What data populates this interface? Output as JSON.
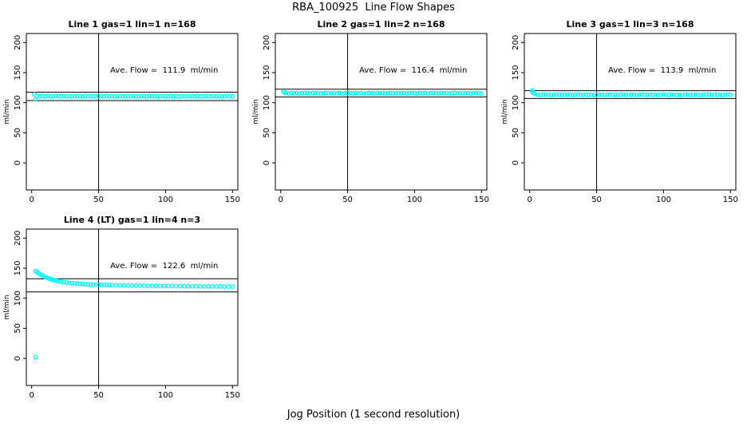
{
  "header": {
    "title": "RBA_100925  Line Flow Shapes"
  },
  "footer": {
    "xlabel": "Jog Position (1 second resolution)"
  },
  "style": {
    "point_color": "#00ffff",
    "axis_color": "#000000",
    "background": "#ffffff"
  },
  "chart_data": [
    {
      "type": "scatter",
      "title": "Line 1 gas=1 lin=1 n=168",
      "annotation": "Ave. Flow =  111.9  ml/min",
      "ave_flow": 111.9,
      "ylabel": "ml/min",
      "xticks": [
        0,
        50,
        100,
        150
      ],
      "yticks": [
        0,
        50,
        100,
        150,
        200
      ],
      "xlim": [
        0,
        150
      ],
      "ylim": [
        0,
        200
      ],
      "vline_x": 50,
      "hlines": [
        117.5,
        103.5
      ],
      "points": [
        [
          2,
          114
        ],
        [
          3,
          105.5
        ],
        [
          4,
          110.8
        ],
        [
          6,
          110.3
        ],
        [
          8,
          111
        ],
        [
          10,
          110.5
        ],
        [
          12,
          110.9
        ],
        [
          14,
          110.2
        ],
        [
          16,
          110.6
        ],
        [
          18,
          111.1
        ],
        [
          20,
          110.8
        ],
        [
          22,
          110.3
        ],
        [
          24,
          111
        ],
        [
          26,
          110.5
        ],
        [
          28,
          110.9
        ],
        [
          30,
          110.2
        ],
        [
          32,
          110.6
        ],
        [
          34,
          111.1
        ],
        [
          36,
          110.8
        ],
        [
          38,
          110.3
        ],
        [
          40,
          111
        ],
        [
          42,
          110.5
        ],
        [
          44,
          110.9
        ],
        [
          46,
          110.2
        ],
        [
          48,
          110.6
        ],
        [
          50,
          111.1
        ],
        [
          52,
          110.8
        ],
        [
          54,
          110.3
        ],
        [
          56,
          111
        ],
        [
          58,
          110.5
        ],
        [
          60,
          110.9
        ],
        [
          62,
          110.2
        ],
        [
          64,
          110.6
        ],
        [
          66,
          111.1
        ],
        [
          68,
          110.8
        ],
        [
          70,
          110.3
        ],
        [
          72,
          111
        ],
        [
          74,
          110.5
        ],
        [
          76,
          110.9
        ],
        [
          78,
          110.2
        ],
        [
          80,
          110.6
        ],
        [
          82,
          111.1
        ],
        [
          84,
          110.8
        ],
        [
          86,
          110.3
        ],
        [
          88,
          111
        ],
        [
          90,
          110.5
        ],
        [
          92,
          110.9
        ],
        [
          94,
          110.2
        ],
        [
          96,
          110.6
        ],
        [
          98,
          111.1
        ],
        [
          100,
          110.8
        ],
        [
          102,
          110.3
        ],
        [
          104,
          111
        ],
        [
          106,
          110.5
        ],
        [
          108,
          110.9
        ],
        [
          110,
          110.2
        ],
        [
          112,
          110.6
        ],
        [
          114,
          111.1
        ],
        [
          116,
          110.8
        ],
        [
          118,
          110.3
        ],
        [
          120,
          111
        ],
        [
          122,
          110.5
        ],
        [
          124,
          110.9
        ],
        [
          126,
          110.2
        ],
        [
          128,
          110.6
        ],
        [
          130,
          111.1
        ],
        [
          132,
          110.8
        ],
        [
          134,
          110.3
        ],
        [
          136,
          111
        ],
        [
          138,
          110.5
        ],
        [
          140,
          110.9
        ],
        [
          142,
          110.2
        ],
        [
          144,
          110.6
        ],
        [
          146,
          111.1
        ],
        [
          148,
          110.8
        ],
        [
          150,
          110.3
        ]
      ]
    },
    {
      "type": "scatter",
      "title": "Line 2 gas=1 lin=2 n=168",
      "annotation": "Ave. Flow =  116.4  ml/min",
      "ave_flow": 116.4,
      "ylabel": "ml/min",
      "xticks": [
        0,
        50,
        100,
        150
      ],
      "yticks": [
        0,
        50,
        100,
        150,
        200
      ],
      "xlim": [
        0,
        150
      ],
      "ylim": [
        0,
        200
      ],
      "vline_x": 50,
      "hlines": [
        122.5,
        109.5
      ],
      "points": [
        [
          2,
          118.5
        ],
        [
          3,
          117
        ],
        [
          4,
          115.9
        ],
        [
          6,
          115.4
        ],
        [
          8,
          116.1
        ],
        [
          10,
          115.6
        ],
        [
          12,
          116
        ],
        [
          14,
          115.3
        ],
        [
          16,
          115.7
        ],
        [
          18,
          116.2
        ],
        [
          20,
          115.9
        ],
        [
          22,
          115.4
        ],
        [
          24,
          116.1
        ],
        [
          26,
          115.6
        ],
        [
          28,
          116
        ],
        [
          30,
          115.3
        ],
        [
          32,
          115.7
        ],
        [
          34,
          116.2
        ],
        [
          36,
          115.9
        ],
        [
          38,
          115.4
        ],
        [
          40,
          116.1
        ],
        [
          42,
          115.6
        ],
        [
          44,
          116
        ],
        [
          46,
          115.3
        ],
        [
          48,
          115.7
        ],
        [
          50,
          116.2
        ],
        [
          52,
          115.9
        ],
        [
          54,
          115.4
        ],
        [
          56,
          116.1
        ],
        [
          58,
          115.6
        ],
        [
          60,
          116
        ],
        [
          62,
          115.3
        ],
        [
          64,
          115.7
        ],
        [
          66,
          116.2
        ],
        [
          68,
          115.9
        ],
        [
          70,
          115.4
        ],
        [
          72,
          116.1
        ],
        [
          74,
          115.6
        ],
        [
          76,
          116
        ],
        [
          78,
          115.3
        ],
        [
          80,
          115.7
        ],
        [
          82,
          116.2
        ],
        [
          84,
          115.9
        ],
        [
          86,
          115.4
        ],
        [
          88,
          116.1
        ],
        [
          90,
          115.6
        ],
        [
          92,
          116
        ],
        [
          94,
          115.3
        ],
        [
          96,
          115.7
        ],
        [
          98,
          116.2
        ],
        [
          100,
          115.9
        ],
        [
          102,
          115.4
        ],
        [
          104,
          116.1
        ],
        [
          106,
          115.6
        ],
        [
          108,
          116
        ],
        [
          110,
          115.3
        ],
        [
          112,
          115.7
        ],
        [
          114,
          116.2
        ],
        [
          116,
          115.9
        ],
        [
          118,
          115.4
        ],
        [
          120,
          116.1
        ],
        [
          122,
          115.6
        ],
        [
          124,
          116
        ],
        [
          126,
          115.3
        ],
        [
          128,
          115.7
        ],
        [
          130,
          116.2
        ],
        [
          132,
          115.9
        ],
        [
          134,
          115.4
        ],
        [
          136,
          116.1
        ],
        [
          138,
          115.6
        ],
        [
          140,
          116
        ],
        [
          142,
          115.3
        ],
        [
          144,
          115.7
        ],
        [
          146,
          116.2
        ],
        [
          148,
          115.9
        ],
        [
          150,
          115.4
        ]
      ]
    },
    {
      "type": "scatter",
      "title": "Line 3 gas=1 lin=3 n=168",
      "annotation": "Ave. Flow =  113.9  ml/min",
      "ave_flow": 113.9,
      "ylabel": "ml/min",
      "xticks": [
        0,
        50,
        100,
        150
      ],
      "yticks": [
        0,
        50,
        100,
        150,
        200
      ],
      "xlim": [
        0,
        150
      ],
      "ylim": [
        0,
        200
      ],
      "vline_x": 50,
      "hlines": [
        120.0,
        107.0
      ],
      "points": [
        [
          2,
          120.5
        ],
        [
          2,
          118
        ],
        [
          3,
          116
        ],
        [
          4,
          114.5
        ],
        [
          6,
          113.2
        ],
        [
          8,
          112.7
        ],
        [
          10,
          113.4
        ],
        [
          12,
          112.9
        ],
        [
          14,
          113.3
        ],
        [
          16,
          112.6
        ],
        [
          18,
          113
        ],
        [
          20,
          113.5
        ],
        [
          22,
          113.2
        ],
        [
          24,
          112.7
        ],
        [
          26,
          113.4
        ],
        [
          28,
          112.9
        ],
        [
          30,
          113.3
        ],
        [
          32,
          112.6
        ],
        [
          34,
          113
        ],
        [
          36,
          113.5
        ],
        [
          38,
          113.2
        ],
        [
          40,
          112.7
        ],
        [
          42,
          113.4
        ],
        [
          44,
          112.9
        ],
        [
          46,
          113.3
        ],
        [
          48,
          112.6
        ],
        [
          50,
          113
        ],
        [
          52,
          113.5
        ],
        [
          54,
          113.2
        ],
        [
          56,
          112.7
        ],
        [
          58,
          113.4
        ],
        [
          60,
          112.9
        ],
        [
          62,
          113.3
        ],
        [
          64,
          112.6
        ],
        [
          66,
          113
        ],
        [
          68,
          113.5
        ],
        [
          70,
          113.2
        ],
        [
          72,
          112.7
        ],
        [
          74,
          113.4
        ],
        [
          76,
          112.9
        ],
        [
          78,
          113.3
        ],
        [
          80,
          112.6
        ],
        [
          82,
          113
        ],
        [
          84,
          113.5
        ],
        [
          86,
          113.2
        ],
        [
          88,
          112.7
        ],
        [
          90,
          113.4
        ],
        [
          92,
          112.9
        ],
        [
          94,
          113.3
        ],
        [
          96,
          112.6
        ],
        [
          98,
          113
        ],
        [
          100,
          113.5
        ],
        [
          102,
          113.2
        ],
        [
          104,
          112.7
        ],
        [
          106,
          113.4
        ],
        [
          108,
          112.9
        ],
        [
          110,
          113.3
        ],
        [
          112,
          112.6
        ],
        [
          114,
          113
        ],
        [
          116,
          113.5
        ],
        [
          118,
          113.2
        ],
        [
          120,
          112.7
        ],
        [
          122,
          113.4
        ],
        [
          124,
          112.9
        ],
        [
          126,
          113.3
        ],
        [
          128,
          112.6
        ],
        [
          130,
          113
        ],
        [
          132,
          113.5
        ],
        [
          134,
          113.2
        ],
        [
          136,
          112.7
        ],
        [
          138,
          113.4
        ],
        [
          140,
          112.9
        ],
        [
          142,
          113.3
        ],
        [
          144,
          112.6
        ],
        [
          146,
          113
        ],
        [
          148,
          113.5
        ],
        [
          150,
          113.2
        ]
      ]
    },
    {
      "type": "scatter",
      "title": "Line 4 (LT) gas=1 lin=4 n=3",
      "annotation": "Ave. Flow =  122.6  ml/min",
      "ave_flow": 122.6,
      "ylabel": "ml/min",
      "xticks": [
        0,
        50,
        100,
        150
      ],
      "yticks": [
        0,
        50,
        100,
        150,
        200
      ],
      "xlim": [
        0,
        150
      ],
      "ylim": [
        0,
        200
      ],
      "vline_x": 50,
      "hlines": [
        132.5,
        110.5
      ],
      "points": [
        [
          3,
          2
        ],
        [
          3,
          145
        ],
        [
          4,
          143.5
        ],
        [
          5,
          142
        ],
        [
          6,
          140.5
        ],
        [
          7,
          139
        ],
        [
          8,
          137.8
        ],
        [
          9,
          136.6
        ],
        [
          10,
          135.5
        ],
        [
          11,
          134.5
        ],
        [
          12,
          133.6
        ],
        [
          13,
          132.8
        ],
        [
          14,
          132
        ],
        [
          15,
          131.3
        ],
        [
          16,
          130.6
        ],
        [
          17,
          130
        ],
        [
          18,
          129.4
        ],
        [
          19,
          128.9
        ],
        [
          20,
          128.4
        ],
        [
          22,
          127.5
        ],
        [
          24,
          126.8
        ],
        [
          26,
          126.2
        ],
        [
          28,
          125.6
        ],
        [
          30,
          125.1
        ],
        [
          32,
          124.7
        ],
        [
          34,
          124.3
        ],
        [
          36,
          124
        ],
        [
          38,
          123.7
        ],
        [
          40,
          123.4
        ],
        [
          42,
          123.2
        ],
        [
          44,
          123
        ],
        [
          46,
          122.8
        ],
        [
          48,
          122.6
        ],
        [
          50,
          122.4
        ],
        [
          52,
          122.3
        ],
        [
          54,
          122.1
        ],
        [
          56,
          122
        ],
        [
          58,
          121.9
        ],
        [
          60,
          121.8
        ],
        [
          63,
          121.6
        ],
        [
          66,
          121.5
        ],
        [
          69,
          121.3
        ],
        [
          72,
          121.2
        ],
        [
          75,
          121.1
        ],
        [
          78,
          121
        ],
        [
          81,
          120.9
        ],
        [
          84,
          120.8
        ],
        [
          87,
          120.7
        ],
        [
          90,
          120.6
        ],
        [
          93,
          120.5
        ],
        [
          96,
          120.5
        ],
        [
          99,
          120.4
        ],
        [
          102,
          120.3
        ],
        [
          105,
          120.3
        ],
        [
          108,
          120.2
        ],
        [
          111,
          120.1
        ],
        [
          114,
          120.1
        ],
        [
          117,
          120
        ],
        [
          120,
          119.9
        ],
        [
          123,
          119.9
        ],
        [
          126,
          119.8
        ],
        [
          129,
          119.8
        ],
        [
          132,
          119.7
        ],
        [
          135,
          119.7
        ],
        [
          138,
          119.6
        ],
        [
          141,
          119.6
        ],
        [
          144,
          119.5
        ],
        [
          147,
          119.5
        ],
        [
          150,
          119.4
        ]
      ]
    }
  ]
}
